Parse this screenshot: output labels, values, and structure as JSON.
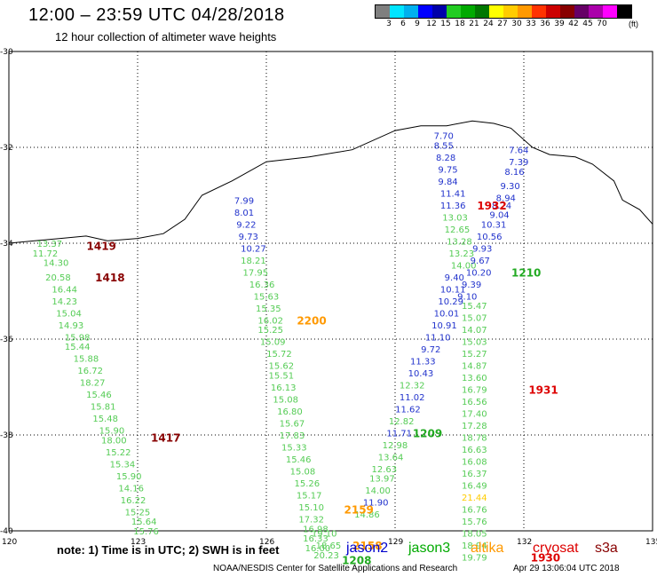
{
  "header": {
    "title": "12:00 – 23:59 UTC 04/28/2018",
    "subtitle": "12 hour collection of altimeter wave heights"
  },
  "colorbar": {
    "colors": [
      "#7f7f7f",
      "#00e5ff",
      "#00b0ee",
      "#0000ff",
      "#0000aa",
      "#22cc22",
      "#00aa00",
      "#007700",
      "#ffff00",
      "#ffcc00",
      "#ff9900",
      "#ff3300",
      "#cc0000",
      "#880000",
      "#660066",
      "#aa00aa",
      "#ff00ff",
      "#000000"
    ],
    "labels": [
      "3",
      "6",
      "9",
      "12",
      "15",
      "18",
      "21",
      "24",
      "27",
      "30",
      "33",
      "36",
      "39",
      "42",
      "45",
      "70"
    ],
    "unit": "(ft)"
  },
  "map": {
    "lat_labels": [
      "-30",
      "-32",
      "-34",
      "-36",
      "-38",
      "-40"
    ],
    "lon_labels": [
      "120",
      "123",
      "126",
      "129",
      "132",
      "135"
    ]
  },
  "tracks": [
    {
      "sat": "jason3",
      "color_key": "green",
      "points": [
        {
          "lon": 120.9,
          "lat": -34.0,
          "v": "13.37"
        },
        {
          "lon": 120.8,
          "lat": -34.2,
          "v": "11.72"
        },
        {
          "lon": 121.05,
          "lat": -34.4,
          "v": "14.30"
        },
        {
          "lon": 121.1,
          "lat": -34.7,
          "v": "20.58"
        },
        {
          "lon": 121.25,
          "lat": -34.95,
          "v": "16.44"
        },
        {
          "lon": 121.25,
          "lat": -35.2,
          "v": "14.23"
        },
        {
          "lon": 121.35,
          "lat": -35.45,
          "v": "15.04"
        },
        {
          "lon": 121.4,
          "lat": -35.7,
          "v": "14.93"
        },
        {
          "lon": 121.55,
          "lat": -35.95,
          "v": "15.98"
        },
        {
          "lon": 121.55,
          "lat": -36.15,
          "v": "15.44"
        },
        {
          "lon": 121.75,
          "lat": -36.4,
          "v": "15.88"
        },
        {
          "lon": 121.85,
          "lat": -36.65,
          "v": "16.72"
        },
        {
          "lon": 121.9,
          "lat": -36.9,
          "v": "18.27"
        },
        {
          "lon": 122.05,
          "lat": -37.15,
          "v": "15.46"
        },
        {
          "lon": 122.15,
          "lat": -37.4,
          "v": "15.81"
        },
        {
          "lon": 122.2,
          "lat": -37.65,
          "v": "15.48"
        },
        {
          "lon": 122.35,
          "lat": -37.9,
          "v": "15.90"
        },
        {
          "lon": 122.4,
          "lat": -38.1,
          "v": "18.00"
        },
        {
          "lon": 122.5,
          "lat": -38.35,
          "v": "15.22"
        },
        {
          "lon": 122.6,
          "lat": -38.6,
          "v": "15.34"
        },
        {
          "lon": 122.75,
          "lat": -38.85,
          "v": "15.90"
        },
        {
          "lon": 122.8,
          "lat": -39.1,
          "v": "14.16"
        },
        {
          "lon": 122.85,
          "lat": -39.35,
          "v": "16.22"
        },
        {
          "lon": 122.95,
          "lat": -39.6,
          "v": "15.25"
        },
        {
          "lon": 123.1,
          "lat": -39.8,
          "v": "15.64"
        },
        {
          "lon": 123.15,
          "lat": -40.0,
          "v": "15.76"
        }
      ]
    },
    {
      "sat": "jason2",
      "color_key": "blue",
      "points": [
        {
          "lon": 125.5,
          "lat": -33.1,
          "v": "7.99"
        },
        {
          "lon": 125.5,
          "lat": -33.35,
          "v": "8.01"
        },
        {
          "lon": 125.55,
          "lat": -33.6,
          "v": "9.22"
        },
        {
          "lon": 125.6,
          "lat": -33.85,
          "v": "9.73"
        },
        {
          "lon": 125.65,
          "lat": -34.1,
          "v": "10.27"
        }
      ]
    },
    {
      "sat": "jason3",
      "color_key": "green",
      "points": [
        {
          "lon": 125.65,
          "lat": -34.35,
          "v": "18.21"
        },
        {
          "lon": 125.7,
          "lat": -34.6,
          "v": "17.95"
        },
        {
          "lon": 125.85,
          "lat": -34.85,
          "v": "16.36"
        },
        {
          "lon": 125.95,
          "lat": -35.1,
          "v": "15.63"
        },
        {
          "lon": 126.0,
          "lat": -35.35,
          "v": "15.35"
        },
        {
          "lon": 126.05,
          "lat": -35.6,
          "v": "16.02"
        },
        {
          "lon": 126.05,
          "lat": -35.8,
          "v": "15.25"
        },
        {
          "lon": 126.1,
          "lat": -36.05,
          "v": "15.09"
        },
        {
          "lon": 126.25,
          "lat": -36.3,
          "v": "15.72"
        },
        {
          "lon": 126.3,
          "lat": -36.55,
          "v": "15.62"
        },
        {
          "lon": 126.3,
          "lat": -36.75,
          "v": "15.51"
        },
        {
          "lon": 126.35,
          "lat": -37.0,
          "v": "16.13"
        },
        {
          "lon": 126.4,
          "lat": -37.25,
          "v": "15.08"
        },
        {
          "lon": 126.5,
          "lat": -37.5,
          "v": "16.80"
        },
        {
          "lon": 126.55,
          "lat": -37.75,
          "v": "15.67"
        },
        {
          "lon": 126.55,
          "lat": -38.0,
          "v": "17.83"
        },
        {
          "lon": 126.6,
          "lat": -38.25,
          "v": "15.33"
        },
        {
          "lon": 126.7,
          "lat": -38.5,
          "v": "15.46"
        },
        {
          "lon": 126.8,
          "lat": -38.75,
          "v": "15.08"
        },
        {
          "lon": 126.9,
          "lat": -39.0,
          "v": "15.26"
        },
        {
          "lon": 126.95,
          "lat": -39.25,
          "v": "15.17"
        },
        {
          "lon": 127.0,
          "lat": -39.5,
          "v": "15.10"
        },
        {
          "lon": 127.0,
          "lat": -39.75,
          "v": "17.32"
        },
        {
          "lon": 127.1,
          "lat": -39.95,
          "v": "16.98"
        },
        {
          "lon": 127.1,
          "lat": -40.15,
          "v": "16.33"
        },
        {
          "lon": 127.15,
          "lat": -40.35,
          "v": "16.00"
        }
      ]
    },
    {
      "sat": "jason2",
      "color_key": "blue",
      "points": [
        {
          "lon": 130.15,
          "lat": -31.75,
          "v": "7.70"
        },
        {
          "lon": 130.15,
          "lat": -31.95,
          "v": "8.55"
        },
        {
          "lon": 130.2,
          "lat": -32.2,
          "v": "8.28"
        },
        {
          "lon": 130.25,
          "lat": -32.45,
          "v": "9.75"
        },
        {
          "lon": 130.25,
          "lat": -32.7,
          "v": "9.84"
        },
        {
          "lon": 130.3,
          "lat": -32.95,
          "v": "11.41"
        },
        {
          "lon": 130.3,
          "lat": -33.2,
          "v": "11.36"
        }
      ]
    },
    {
      "sat": "jason3",
      "color_key": "green",
      "points": [
        {
          "lon": 130.35,
          "lat": -33.45,
          "v": "13.03"
        },
        {
          "lon": 130.4,
          "lat": -33.7,
          "v": "12.65"
        },
        {
          "lon": 130.45,
          "lat": -33.95,
          "v": "13.28"
        },
        {
          "lon": 130.5,
          "lat": -34.2,
          "v": "13.23"
        },
        {
          "lon": 130.55,
          "lat": -34.45,
          "v": "14.00"
        }
      ]
    },
    {
      "sat": "jason2",
      "color_key": "blue",
      "points": [
        {
          "lon": 130.4,
          "lat": -34.7,
          "v": "9.40"
        },
        {
          "lon": 130.3,
          "lat": -34.95,
          "v": "10.11"
        },
        {
          "lon": 130.25,
          "lat": -35.2,
          "v": "10.29"
        },
        {
          "lon": 130.15,
          "lat": -35.45,
          "v": "10.01"
        },
        {
          "lon": 130.1,
          "lat": -35.7,
          "v": "10.91"
        },
        {
          "lon": 129.95,
          "lat": -35.95,
          "v": "11.10"
        },
        {
          "lon": 129.85,
          "lat": -36.2,
          "v": "9.72"
        },
        {
          "lon": 129.6,
          "lat": -36.45,
          "v": "11.33"
        },
        {
          "lon": 129.55,
          "lat": -36.7,
          "v": "10.43"
        },
        {
          "lon": 129.35,
          "lat": -37.2,
          "v": "11.02"
        },
        {
          "lon": 129.25,
          "lat": -37.45,
          "v": "11.62"
        },
        {
          "lon": 129.05,
          "lat": -37.95,
          "v": "11.71"
        }
      ]
    },
    {
      "sat": "jason3",
      "color_key": "green",
      "points": [
        {
          "lon": 129.35,
          "lat": -36.95,
          "v": "12.32"
        },
        {
          "lon": 129.1,
          "lat": -37.7,
          "v": "12.82"
        },
        {
          "lon": 128.95,
          "lat": -38.2,
          "v": "12.98"
        },
        {
          "lon": 128.85,
          "lat": -38.45,
          "v": "13.64"
        },
        {
          "lon": 128.7,
          "lat": -38.7,
          "v": "12.63"
        },
        {
          "lon": 128.65,
          "lat": -38.9,
          "v": "13.97"
        },
        {
          "lon": 128.55,
          "lat": -39.15,
          "v": "14.00"
        },
        {
          "lon": 128.3,
          "lat": -39.65,
          "v": "14.86"
        }
      ]
    },
    {
      "sat": "jason2",
      "color_key": "blue",
      "points": [
        {
          "lon": 128.5,
          "lat": -39.4,
          "v": "11.90"
        }
      ]
    },
    {
      "sat": "jason3",
      "color_key": "green",
      "points": [
        {
          "lon": 127.3,
          "lat": -40.05,
          "v": "19.10"
        },
        {
          "lon": 127.4,
          "lat": -40.3,
          "v": "18.65"
        },
        {
          "lon": 127.35,
          "lat": -40.5,
          "v": "20.23"
        }
      ]
    },
    {
      "sat": "jason2",
      "color_key": "blue",
      "points": [
        {
          "lon": 131.9,
          "lat": -32.05,
          "v": "7.64"
        },
        {
          "lon": 131.9,
          "lat": -32.3,
          "v": "7.39"
        },
        {
          "lon": 131.8,
          "lat": -32.5,
          "v": "8.16"
        },
        {
          "lon": 131.7,
          "lat": -32.8,
          "v": "9.30"
        },
        {
          "lon": 131.6,
          "lat": -33.05,
          "v": "8.94"
        },
        {
          "lon": 131.5,
          "lat": -33.2,
          "v": "8.24"
        },
        {
          "lon": 131.45,
          "lat": -33.4,
          "v": "9.04"
        },
        {
          "lon": 131.25,
          "lat": -33.6,
          "v": "10.31"
        },
        {
          "lon": 131.15,
          "lat": -33.85,
          "v": "10.56"
        },
        {
          "lon": 131.05,
          "lat": -34.1,
          "v": "9.93"
        },
        {
          "lon": 131.0,
          "lat": -34.35,
          "v": "9.67"
        },
        {
          "lon": 130.9,
          "lat": -34.6,
          "v": "10.20"
        },
        {
          "lon": 130.8,
          "lat": -34.85,
          "v": "9.39"
        },
        {
          "lon": 130.7,
          "lat": -35.1,
          "v": "9.10"
        }
      ]
    },
    {
      "sat": "jason3",
      "color_key": "green",
      "points": [
        {
          "lon": 130.8,
          "lat": -35.3,
          "v": "15.47"
        },
        {
          "lon": 130.8,
          "lat": -35.55,
          "v": "15.07"
        },
        {
          "lon": 130.8,
          "lat": -35.8,
          "v": "14.07"
        },
        {
          "lon": 130.8,
          "lat": -36.05,
          "v": "15.03"
        },
        {
          "lon": 130.8,
          "lat": -36.3,
          "v": "15.27"
        },
        {
          "lon": 130.8,
          "lat": -36.55,
          "v": "14.87"
        },
        {
          "lon": 130.8,
          "lat": -36.8,
          "v": "13.60"
        },
        {
          "lon": 130.8,
          "lat": -37.05,
          "v": "16.79"
        },
        {
          "lon": 130.8,
          "lat": -37.3,
          "v": "16.56"
        },
        {
          "lon": 130.8,
          "lat": -37.55,
          "v": "17.40"
        },
        {
          "lon": 130.8,
          "lat": -37.8,
          "v": "17.28"
        },
        {
          "lon": 130.8,
          "lat": -38.05,
          "v": "18.78"
        },
        {
          "lon": 130.8,
          "lat": -38.3,
          "v": "16.63"
        },
        {
          "lon": 130.8,
          "lat": -38.55,
          "v": "16.08"
        },
        {
          "lon": 130.8,
          "lat": -38.8,
          "v": "16.37"
        },
        {
          "lon": 130.8,
          "lat": -39.05,
          "v": "16.49"
        },
        {
          "lon": 130.8,
          "lat": -39.55,
          "v": "16.76"
        },
        {
          "lon": 130.8,
          "lat": -39.8,
          "v": "15.76"
        },
        {
          "lon": 130.8,
          "lat": -40.05,
          "v": "18.05"
        },
        {
          "lon": 130.8,
          "lat": -40.3,
          "v": "18.94"
        },
        {
          "lon": 130.8,
          "lat": -40.55,
          "v": "19.79"
        }
      ]
    },
    {
      "sat": "altika",
      "color_key": "yellow",
      "points": [
        {
          "lon": 130.8,
          "lat": -39.3,
          "v": "21.44"
        }
      ]
    }
  ],
  "time_labels": [
    {
      "text": "1419",
      "color_key": "darkred",
      "lon": 122.1,
      "lat": -34.05
    },
    {
      "text": "1418",
      "color_key": "darkred",
      "lon": 122.3,
      "lat": -34.7
    },
    {
      "text": "1417",
      "color_key": "darkred",
      "lon": 123.6,
      "lat": -38.05
    },
    {
      "text": "2200",
      "color_key": "orange",
      "lon": 127.0,
      "lat": -35.6
    },
    {
      "text": "1932",
      "color_key": "red",
      "lon": 131.2,
      "lat": -33.2
    },
    {
      "text": "1210",
      "color_key": "green",
      "lon": 132.0,
      "lat": -34.6
    },
    {
      "text": "1209",
      "color_key": "green",
      "lon": 129.7,
      "lat": -37.95
    },
    {
      "text": "1931",
      "color_key": "red",
      "lon": 132.4,
      "lat": -37.05
    },
    {
      "text": "1930",
      "color_key": "red",
      "lon": 132.45,
      "lat": -40.55
    },
    {
      "text": "2159",
      "color_key": "orange",
      "lon": 128.1,
      "lat": -39.55
    },
    {
      "text": "2158",
      "color_key": "orange",
      "lon": 128.3,
      "lat": -40.3
    },
    {
      "text": "1208",
      "color_key": "green",
      "lon": 128.05,
      "lat": -40.6
    }
  ],
  "label_colors": {
    "green": "#22aa22",
    "blue": "#0000cc",
    "yellow": "#ffcc00",
    "orange": "#ff9900",
    "red": "#dd0000",
    "darkred": "#880000"
  },
  "track_colors": {
    "green": "#55cc55",
    "blue": "#2233cc",
    "yellow": "#ffcc00"
  },
  "legend": {
    "note": "note: 1) Time is in UTC; 2) SWH is in feet",
    "sats": [
      {
        "name": "jason2",
        "color": "#0000cc"
      },
      {
        "name": "jason3",
        "color": "#00aa00"
      },
      {
        "name": "altika",
        "color": "#ff9900"
      },
      {
        "name": "cryosat",
        "color": "#dd0000"
      },
      {
        "name": "s3a",
        "color": "#880000"
      }
    ]
  },
  "footer": {
    "credit": "NOAA/NESDIS Center for Satellite Applications and Research",
    "stamp": "Apr 29 13:06:04 UTC 2018"
  }
}
